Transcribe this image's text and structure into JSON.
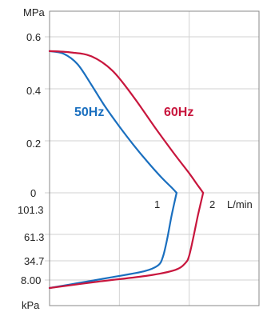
{
  "chart_data": {
    "type": "line",
    "upper_axis": {
      "unit": "MPa",
      "ticks": [
        "0.6",
        "0.4",
        "0.2",
        "0"
      ],
      "ylim": [
        0,
        0.6
      ]
    },
    "lower_axis": {
      "unit": "kPa",
      "ticks": [
        "101.3",
        "61.3",
        "34.7",
        "8.00"
      ]
    },
    "x_axis": {
      "unit": "L/min",
      "ticks": [
        "1",
        "2"
      ],
      "xlim": [
        0,
        3
      ]
    },
    "grid": true,
    "series": [
      {
        "name": "50Hz",
        "color": "#1a6fbf",
        "pressure": [
          [
            0,
            0.545
          ],
          [
            0.2,
            0.535
          ],
          [
            0.4,
            0.495
          ],
          [
            0.6,
            0.415
          ],
          [
            0.8,
            0.33
          ],
          [
            1.0,
            0.255
          ],
          [
            1.2,
            0.185
          ],
          [
            1.4,
            0.12
          ],
          [
            1.6,
            0.06
          ],
          [
            1.75,
            0.02
          ],
          [
            1.82,
            0.0
          ]
        ],
        "vacuum": [
          [
            1.82,
            101.3
          ],
          [
            1.75,
            80
          ],
          [
            1.68,
            55
          ],
          [
            1.62,
            38
          ],
          [
            1.55,
            28
          ],
          [
            1.35,
            20
          ],
          [
            0.9,
            12
          ],
          [
            0.4,
            6
          ],
          [
            0,
            3
          ]
        ]
      },
      {
        "name": "60Hz",
        "color": "#c8163d",
        "pressure": [
          [
            0,
            0.545
          ],
          [
            0.3,
            0.54
          ],
          [
            0.6,
            0.525
          ],
          [
            0.9,
            0.47
          ],
          [
            1.2,
            0.37
          ],
          [
            1.5,
            0.255
          ],
          [
            1.8,
            0.145
          ],
          [
            2.0,
            0.075
          ],
          [
            2.12,
            0.03
          ],
          [
            2.2,
            0.0
          ]
        ],
        "vacuum": [
          [
            2.2,
            101.3
          ],
          [
            2.12,
            78
          ],
          [
            2.05,
            55
          ],
          [
            2.0,
            40
          ],
          [
            1.95,
            32
          ],
          [
            1.8,
            22
          ],
          [
            1.4,
            14
          ],
          [
            0.7,
            7
          ],
          [
            0,
            3
          ]
        ]
      }
    ]
  }
}
